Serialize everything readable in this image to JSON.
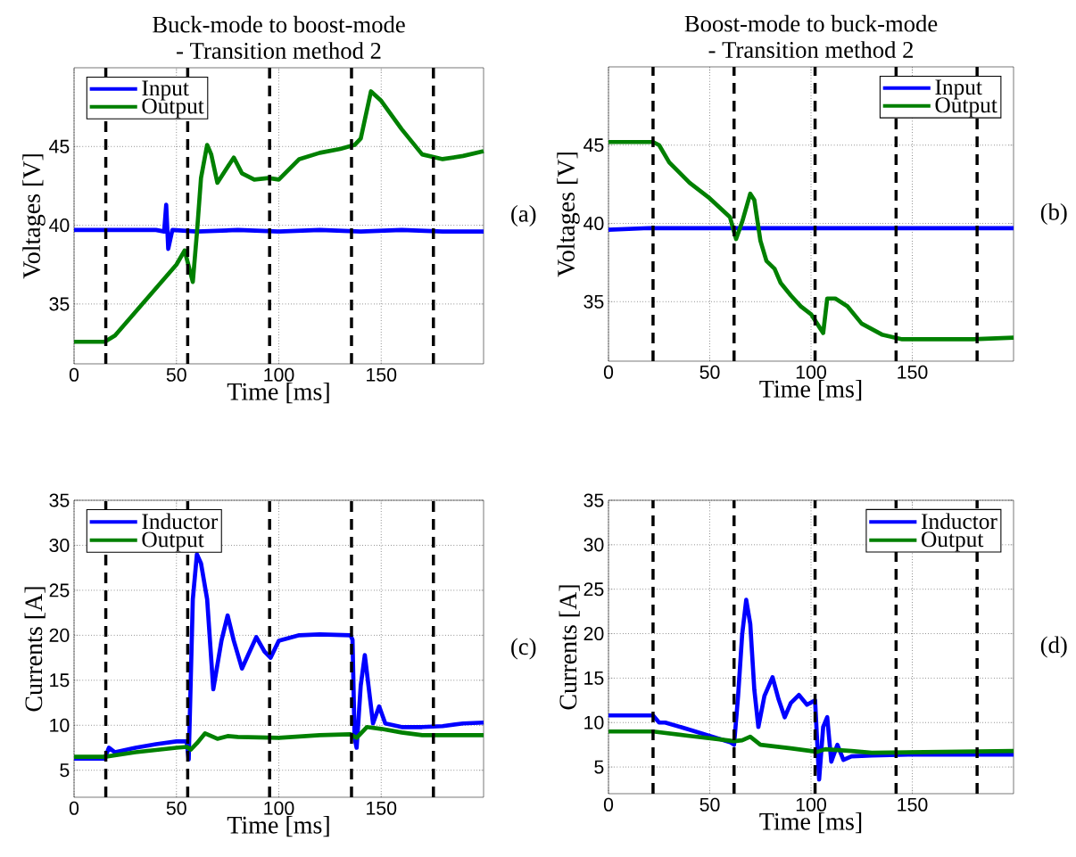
{
  "chart_data": [
    {
      "type": "line",
      "title": "Buck-mode to boost-mode",
      "subtitle": "- Transition method 2",
      "xlabel": "Time [ms]",
      "ylabel": "Voltages [V]",
      "annotations": [
        "(a)"
      ],
      "xlim": [
        0,
        200
      ],
      "ylim": [
        31.2,
        50
      ],
      "xticks": [
        0,
        50,
        100,
        150
      ],
      "yticks": [
        35,
        40,
        45
      ],
      "grid": true,
      "legend": "top left",
      "line_style": "solid",
      "ref_lines": [
        {
          "axis": "x",
          "value": 15.5,
          "color": "#000000",
          "line_style": "dashed"
        },
        {
          "axis": "x",
          "value": 55.5,
          "color": "#000000",
          "line_style": "dashed"
        },
        {
          "axis": "x",
          "value": 95.5,
          "color": "#000000",
          "line_style": "dashed"
        },
        {
          "axis": "x",
          "value": 135.5,
          "color": "#000000",
          "line_style": "dashed"
        },
        {
          "axis": "x",
          "value": 175.5,
          "color": "#000000",
          "line_style": "dashed"
        }
      ],
      "series": [
        {
          "name": "Input",
          "color": "#0000ff",
          "x": [
            0,
            20,
            40,
            44,
            45,
            46,
            48,
            60,
            80,
            100,
            120,
            140,
            160,
            180,
            200
          ],
          "values": [
            39.7,
            39.7,
            39.7,
            39.6,
            41.3,
            38.5,
            39.7,
            39.6,
            39.7,
            39.6,
            39.7,
            39.6,
            39.7,
            39.6,
            39.6
          ]
        },
        {
          "name": "Output",
          "color": "#008000",
          "x": [
            0,
            15,
            20,
            30,
            40,
            50,
            54,
            58,
            60,
            62,
            65,
            67,
            70,
            74,
            78,
            82,
            88,
            95,
            100,
            110,
            120,
            130,
            137,
            140,
            145,
            150,
            160,
            170,
            180,
            190,
            200
          ],
          "values": [
            32.6,
            32.6,
            33.0,
            34.5,
            36.0,
            37.5,
            38.4,
            36.4,
            39.5,
            43.0,
            45.1,
            44.5,
            42.7,
            43.5,
            44.3,
            43.3,
            42.9,
            43.0,
            42.9,
            44.2,
            44.6,
            44.85,
            45.1,
            45.5,
            48.5,
            47.9,
            46.1,
            44.5,
            44.2,
            44.4,
            44.7
          ]
        }
      ]
    },
    {
      "type": "line",
      "title": "Boost-mode to buck-mode",
      "subtitle": "- Transition method 2",
      "xlabel": "Time [ms]",
      "ylabel": "Voltages [V]",
      "annotations": [
        "(b)"
      ],
      "xlim": [
        0,
        200
      ],
      "ylim": [
        31.2,
        50
      ],
      "xticks": [
        0,
        50,
        100,
        150
      ],
      "yticks": [
        35,
        40,
        45
      ],
      "grid": true,
      "legend": "top right",
      "line_style": "solid",
      "ref_lines": [
        {
          "axis": "x",
          "value": 22,
          "color": "#000000",
          "line_style": "dashed"
        },
        {
          "axis": "x",
          "value": 62,
          "color": "#000000",
          "line_style": "dashed"
        },
        {
          "axis": "x",
          "value": 102,
          "color": "#000000",
          "line_style": "dashed"
        },
        {
          "axis": "x",
          "value": 142,
          "color": "#000000",
          "line_style": "dashed"
        },
        {
          "axis": "x",
          "value": 182,
          "color": "#000000",
          "line_style": "dashed"
        }
      ],
      "series": [
        {
          "name": "Input",
          "color": "#0000ff",
          "x": [
            0,
            20,
            40,
            60,
            80,
            100,
            120,
            140,
            160,
            180,
            200
          ],
          "values": [
            39.6,
            39.7,
            39.7,
            39.7,
            39.7,
            39.7,
            39.7,
            39.7,
            39.7,
            39.7,
            39.7
          ]
        },
        {
          "name": "Output",
          "color": "#008000",
          "x": [
            0,
            22,
            25,
            30,
            40,
            50,
            60,
            63,
            66,
            70,
            72,
            75,
            78,
            82,
            85,
            90,
            95,
            100,
            104,
            106,
            108,
            112,
            118,
            125,
            135,
            145,
            160,
            180,
            200
          ],
          "values": [
            45.2,
            45.2,
            45.0,
            43.9,
            42.6,
            41.6,
            40.4,
            39.0,
            40.1,
            41.9,
            41.5,
            38.9,
            37.6,
            37.1,
            36.2,
            35.4,
            34.7,
            34.2,
            33.4,
            33.0,
            35.2,
            35.2,
            34.7,
            33.6,
            32.9,
            32.6,
            32.6,
            32.6,
            32.7
          ]
        }
      ]
    },
    {
      "type": "line",
      "xlabel": "Time [ms]",
      "ylabel": "Currents [A]",
      "annotations": [
        "(c)"
      ],
      "xlim": [
        0,
        200
      ],
      "ylim": [
        2,
        35
      ],
      "xticks": [
        0,
        50,
        100,
        150
      ],
      "yticks": [
        5,
        10,
        15,
        20,
        25,
        30,
        35
      ],
      "grid": true,
      "legend": "top left",
      "line_style": "solid",
      "ref_lines": [
        {
          "axis": "x",
          "value": 15.5,
          "color": "#000000",
          "line_style": "dashed"
        },
        {
          "axis": "x",
          "value": 55.5,
          "color": "#000000",
          "line_style": "dashed"
        },
        {
          "axis": "x",
          "value": 95.5,
          "color": "#000000",
          "line_style": "dashed"
        },
        {
          "axis": "x",
          "value": 135.5,
          "color": "#000000",
          "line_style": "dashed"
        },
        {
          "axis": "x",
          "value": 175.5,
          "color": "#000000",
          "line_style": "dashed"
        }
      ],
      "series": [
        {
          "name": "Inductor",
          "color": "#0000ff",
          "x": [
            0,
            15,
            17,
            20,
            30,
            40,
            50,
            55,
            56,
            58,
            60,
            62,
            65,
            68,
            72,
            75,
            78,
            82,
            85,
            89,
            93,
            96,
            100,
            110,
            120,
            135,
            136,
            137,
            138,
            140,
            142,
            144,
            146,
            149,
            152,
            160,
            170,
            180,
            190,
            200
          ],
          "values": [
            6.3,
            6.3,
            7.5,
            7.0,
            7.5,
            7.9,
            8.2,
            8.2,
            6.2,
            24,
            29,
            28,
            24,
            14,
            19.4,
            22.2,
            19.4,
            16.3,
            17.8,
            19.8,
            18.2,
            17.5,
            19.4,
            20,
            20.1,
            20,
            19.5,
            8.6,
            7.5,
            14.4,
            17.8,
            14,
            10.2,
            12.1,
            10.2,
            9.8,
            9.8,
            9.9,
            10.2,
            10.3
          ]
        },
        {
          "name": "Output",
          "color": "#008000",
          "x": [
            0,
            15,
            30,
            50,
            55,
            57,
            60,
            64,
            70,
            75,
            80,
            100,
            120,
            135,
            138,
            143,
            150,
            160,
            170,
            200
          ],
          "values": [
            6.5,
            6.5,
            7.0,
            7.5,
            7.6,
            7.3,
            8.0,
            9.1,
            8.5,
            8.8,
            8.7,
            8.6,
            8.9,
            9.0,
            8.6,
            9.8,
            9.6,
            9.2,
            8.9,
            8.9
          ]
        }
      ]
    },
    {
      "type": "line",
      "xlabel": "Time [ms]",
      "ylabel": "Currents [A]",
      "annotations": [
        "(d)"
      ],
      "xlim": [
        0,
        200
      ],
      "ylim": [
        2,
        35
      ],
      "xticks": [
        0,
        50,
        100,
        150
      ],
      "yticks": [
        5,
        10,
        15,
        20,
        25,
        30,
        35
      ],
      "grid": true,
      "legend": "top right",
      "line_style": "solid",
      "ref_lines": [
        {
          "axis": "x",
          "value": 22,
          "color": "#000000",
          "line_style": "dashed"
        },
        {
          "axis": "x",
          "value": 62,
          "color": "#000000",
          "line_style": "dashed"
        },
        {
          "axis": "x",
          "value": 102,
          "color": "#000000",
          "line_style": "dashed"
        },
        {
          "axis": "x",
          "value": 142,
          "color": "#000000",
          "line_style": "dashed"
        },
        {
          "axis": "x",
          "value": 182,
          "color": "#000000",
          "line_style": "dashed"
        }
      ],
      "series": [
        {
          "name": "Inductor",
          "color": "#0000ff",
          "x": [
            0,
            22,
            25,
            28,
            40,
            50,
            60,
            62,
            64,
            66,
            68,
            70,
            72,
            74,
            77,
            81,
            84,
            87,
            90,
            94,
            98,
            102,
            104,
            106,
            108,
            110,
            113,
            116,
            120,
            130,
            150,
            180,
            200
          ],
          "values": [
            10.8,
            10.8,
            10.0,
            10.0,
            9.2,
            8.5,
            7.8,
            7.5,
            13,
            19.9,
            23.8,
            21.1,
            13.7,
            9.5,
            13,
            15.1,
            12.6,
            10.6,
            12.2,
            13.1,
            12.0,
            12.5,
            3.6,
            9.5,
            10.6,
            5.6,
            7.5,
            5.8,
            6.2,
            6.3,
            6.4,
            6.4,
            6.4
          ]
        },
        {
          "name": "Output",
          "color": "#008000",
          "x": [
            0,
            22,
            40,
            55,
            62,
            66,
            70,
            75,
            90,
            100,
            103,
            107,
            120,
            130,
            200
          ],
          "values": [
            9.0,
            9.0,
            8.5,
            8.1,
            7.9,
            8.0,
            8.4,
            7.5,
            7.1,
            6.8,
            6.7,
            7.0,
            6.8,
            6.6,
            6.8
          ]
        }
      ]
    }
  ]
}
